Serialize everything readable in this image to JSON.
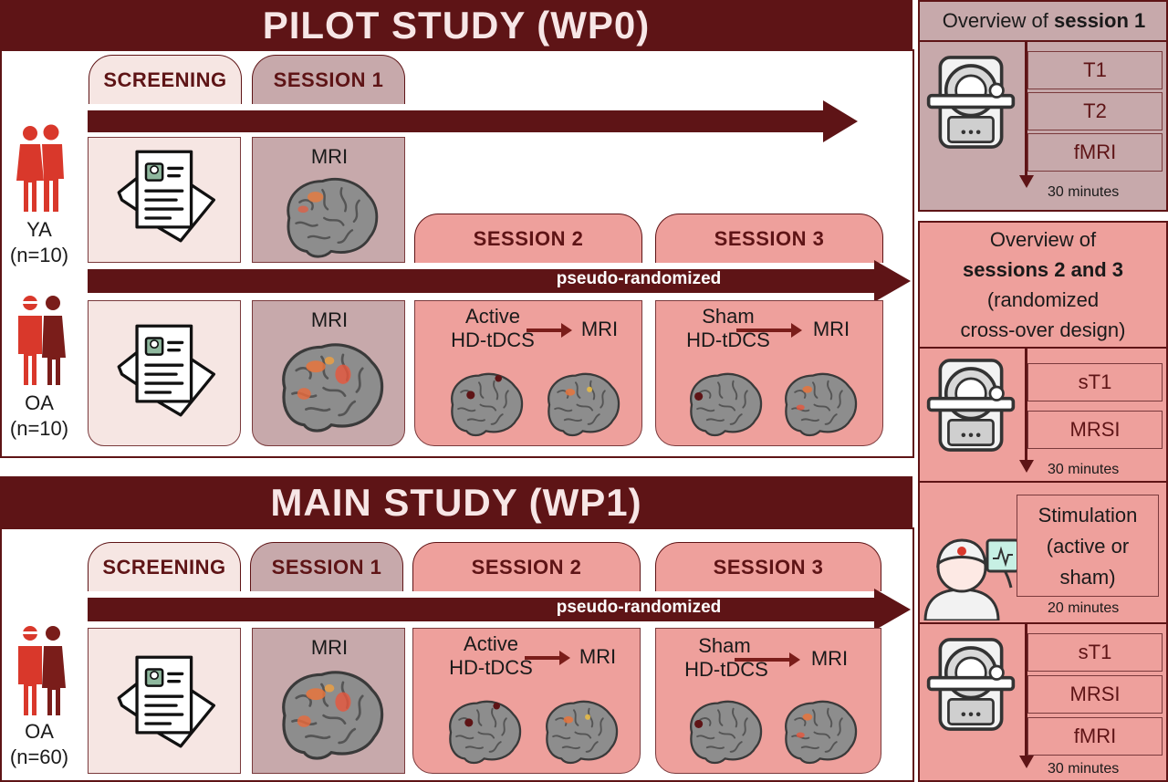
{
  "pilot": {
    "title": "PILOT STUDY (WP0)",
    "tabs": {
      "screening": "SCREENING",
      "session1": "SESSION 1",
      "session2": "SESSION 2",
      "session3": "SESSION 3"
    },
    "groups": [
      {
        "code": "YA",
        "n": "(n=10)"
      },
      {
        "code": "OA",
        "n": "(n=10)"
      }
    ],
    "ya_mri": "MRI",
    "oa_mri": "MRI",
    "arrow_label": "pseudo-randomized",
    "session2": {
      "line1": "Active",
      "line2": "HD-tDCS",
      "target": "MRI"
    },
    "session3": {
      "line1": "Sham",
      "line2": "HD-tDCS",
      "target": "MRI"
    }
  },
  "main": {
    "title": "MAIN STUDY (WP1)",
    "tabs": {
      "screening": "SCREENING",
      "session1": "SESSION 1",
      "session2": "SESSION 2",
      "session3": "SESSION 3"
    },
    "group": {
      "code": "OA",
      "n": "(n=60)"
    },
    "mri": "MRI",
    "arrow_label": "pseudo-randomized",
    "session2": {
      "line1": "Active",
      "line2": "HD-tDCS",
      "target": "MRI"
    },
    "session3": {
      "line1": "Sham",
      "line2": "HD-tDCS",
      "target": "MRI"
    }
  },
  "overview1": {
    "title_prefix": "Overview of ",
    "title_bold": "session 1",
    "items": [
      "T1",
      "T2",
      "fMRI"
    ],
    "duration": "30 minutes"
  },
  "overview23": {
    "line1": "Overview of",
    "line2": "sessions 2 and 3",
    "line3": "(randomized",
    "line4": "cross-over design)",
    "pre_items": [
      "sT1",
      "MRSI"
    ],
    "pre_duration": "30 minutes",
    "stim_line1": "Stimulation",
    "stim_line2": "(active or",
    "stim_line3": "sham)",
    "stim_duration": "20 minutes",
    "post_items": [
      "sT1",
      "MRSI",
      "fMRI"
    ],
    "post_duration": "30 minutes"
  },
  "colors": {
    "dark": "#5e1416",
    "screening": "#f6e6e3",
    "session1": "#c7a9ab",
    "session23": "#eea09c",
    "figure": "#d9382b"
  },
  "icons": [
    "person-pair-icon",
    "document-stack-icon",
    "brain-icon",
    "mri-scanner-icon",
    "stimulation-cap-icon"
  ]
}
